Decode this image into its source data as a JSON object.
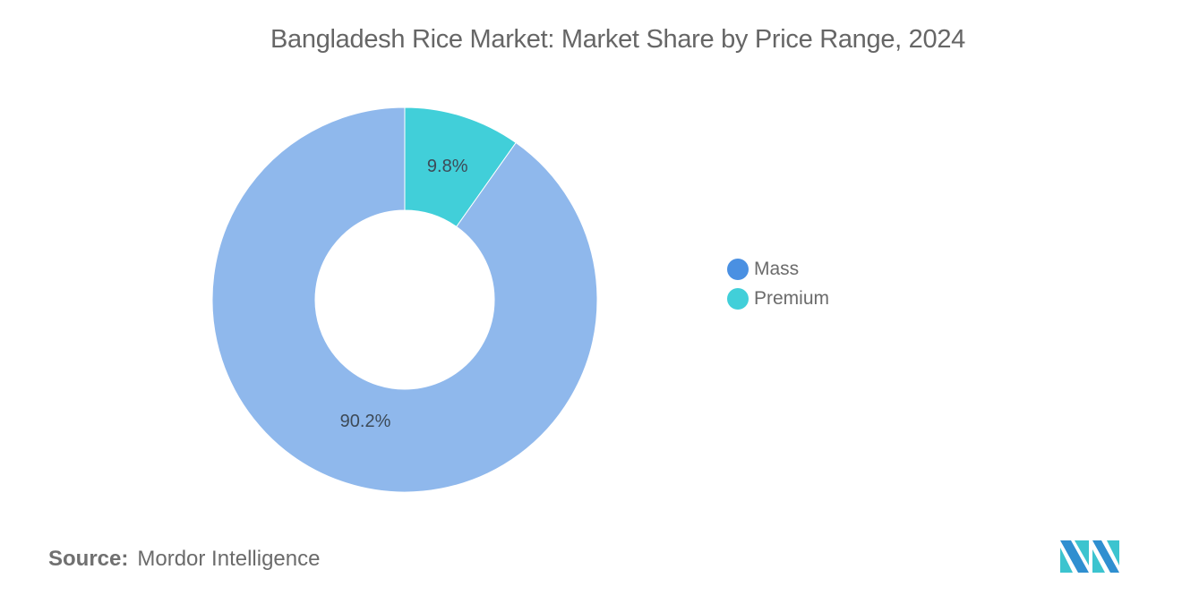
{
  "title": "Bangladesh Rice Market: Market Share by Price Range, 2024",
  "chart_data": {
    "type": "pie",
    "subtype": "donut",
    "title": "Bangladesh Rice Market: Market Share by Price Range, 2024",
    "categories": [
      "Premium",
      "Mass"
    ],
    "values": [
      9.8,
      90.2
    ],
    "labels": [
      "9.8%",
      "90.2%"
    ],
    "unit": "%",
    "colors": {
      "Premium": "#41cfd9",
      "Mass": "#8fb8ec"
    },
    "legend_position": "right",
    "legend": [
      "Mass",
      "Premium"
    ]
  },
  "legend": {
    "items": [
      {
        "label": "Mass",
        "color": "#4a90e2"
      },
      {
        "label": "Premium",
        "color": "#41cfd9"
      }
    ]
  },
  "source": {
    "label": "Source:",
    "value": "Mordor Intelligence"
  },
  "logo": {
    "icon": "mordor-intelligence-logo-icon"
  }
}
